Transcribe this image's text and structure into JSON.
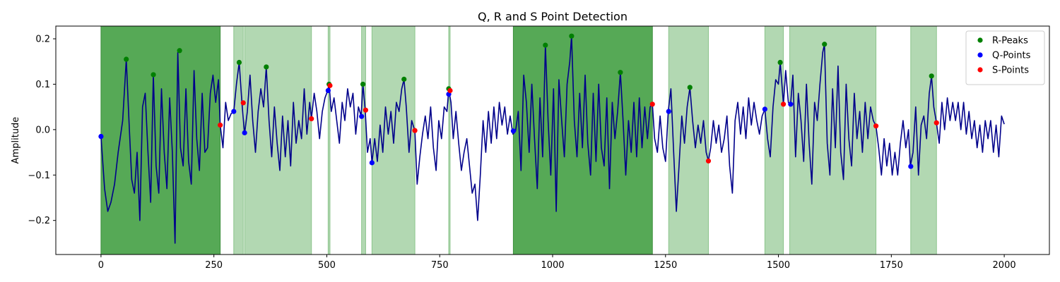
{
  "chart_data": {
    "type": "line",
    "title": "Q, R and S Point Detection",
    "xlabel": "",
    "ylabel": "Amplitude",
    "xlim": [
      -100,
      2100
    ],
    "ylim": [
      -0.275,
      0.228
    ],
    "xticks": [
      0,
      250,
      500,
      750,
      1000,
      1250,
      1500,
      1750,
      2000
    ],
    "yticks": [
      -0.2,
      -0.1,
      0.0,
      0.1,
      0.2
    ],
    "ytick_labels": [
      "−0.2",
      "−0.1",
      "0.0",
      "0.1",
      "0.2"
    ],
    "grid": false,
    "legend_position": "top-right",
    "colors": {
      "signal": "#00008b",
      "r_peaks": "#008000",
      "q_points": "#0000ff",
      "s_points": "#ff0000",
      "region_dark": "#56a956",
      "region_light": "#b2d8b2",
      "region_dark_edge": "#3d8f3d",
      "region_light_edge": "#8cc48c"
    },
    "shaded_regions": [
      {
        "x0": 0,
        "x1": 264,
        "shade": "dark"
      },
      {
        "x0": 294,
        "x1": 315,
        "shade": "light"
      },
      {
        "x0": 318,
        "x1": 466,
        "shade": "light"
      },
      {
        "x0": 503,
        "x1": 507,
        "shade": "light"
      },
      {
        "x0": 577,
        "x1": 586,
        "shade": "light"
      },
      {
        "x0": 600,
        "x1": 695,
        "shade": "light"
      },
      {
        "x0": 770,
        "x1": 773,
        "shade": "light"
      },
      {
        "x0": 913,
        "x1": 1221,
        "shade": "dark"
      },
      {
        "x0": 1257,
        "x1": 1345,
        "shade": "light"
      },
      {
        "x0": 1470,
        "x1": 1511,
        "shade": "light"
      },
      {
        "x0": 1525,
        "x1": 1716,
        "shade": "light"
      },
      {
        "x0": 1793,
        "x1": 1850,
        "shade": "light"
      }
    ],
    "signal_anchors": [
      [
        0,
        -0.015
      ],
      [
        8,
        -0.13
      ],
      [
        15,
        -0.18
      ],
      [
        22,
        -0.16
      ],
      [
        30,
        -0.12
      ],
      [
        38,
        -0.05
      ],
      [
        48,
        0.02
      ],
      [
        56,
        0.155
      ],
      [
        62,
        0.02
      ],
      [
        68,
        -0.11
      ],
      [
        74,
        -0.14
      ],
      [
        80,
        -0.05
      ],
      [
        86,
        -0.2
      ],
      [
        92,
        0.05
      ],
      [
        98,
        0.08
      ],
      [
        104,
        -0.05
      ],
      [
        110,
        -0.16
      ],
      [
        116,
        0.12
      ],
      [
        122,
        -0.08
      ],
      [
        128,
        -0.14
      ],
      [
        134,
        0.09
      ],
      [
        140,
        -0.05
      ],
      [
        146,
        -0.13
      ],
      [
        152,
        0.07
      ],
      [
        158,
        -0.05
      ],
      [
        164,
        -0.25
      ],
      [
        170,
        0.17
      ],
      [
        176,
        -0.04
      ],
      [
        182,
        -0.08
      ],
      [
        188,
        0.09
      ],
      [
        194,
        -0.07
      ],
      [
        200,
        -0.12
      ],
      [
        206,
        0.13
      ],
      [
        212,
        -0.02
      ],
      [
        218,
        -0.09
      ],
      [
        224,
        0.08
      ],
      [
        230,
        -0.05
      ],
      [
        236,
        -0.04
      ],
      [
        242,
        0.08
      ],
      [
        248,
        0.12
      ],
      [
        254,
        0.06
      ],
      [
        260,
        0.11
      ],
      [
        264,
        0.01
      ],
      [
        270,
        -0.04
      ],
      [
        276,
        0.06
      ],
      [
        282,
        0.02
      ],
      [
        288,
        0.035
      ],
      [
        294,
        0.04
      ],
      [
        300,
        0.1
      ],
      [
        306,
        0.148
      ],
      [
        312,
        0.06
      ],
      [
        318,
        -0.01
      ],
      [
        324,
        0.04
      ],
      [
        330,
        0.12
      ],
      [
        336,
        0.02
      ],
      [
        342,
        -0.05
      ],
      [
        348,
        0.04
      ],
      [
        354,
        0.09
      ],
      [
        360,
        0.05
      ],
      [
        366,
        0.138
      ],
      [
        372,
        0.02
      ],
      [
        378,
        -0.06
      ],
      [
        384,
        0.05
      ],
      [
        390,
        -0.03
      ],
      [
        396,
        -0.09
      ],
      [
        402,
        0.03
      ],
      [
        408,
        -0.06
      ],
      [
        414,
        0.02
      ],
      [
        420,
        -0.08
      ],
      [
        426,
        0.06
      ],
      [
        432,
        -0.03
      ],
      [
        438,
        0.02
      ],
      [
        444,
        -0.02
      ],
      [
        450,
        0.09
      ],
      [
        456,
        -0.01
      ],
      [
        462,
        0.06
      ],
      [
        466,
        0.025
      ],
      [
        472,
        0.08
      ],
      [
        478,
        0.04
      ],
      [
        484,
        -0.02
      ],
      [
        490,
        0.04
      ],
      [
        496,
        0.07
      ],
      [
        502,
        0.086
      ],
      [
        505,
        0.1
      ],
      [
        510,
        0.04
      ],
      [
        516,
        0.07
      ],
      [
        522,
        0.02
      ],
      [
        528,
        -0.03
      ],
      [
        534,
        0.06
      ],
      [
        540,
        0.02
      ],
      [
        546,
        0.09
      ],
      [
        552,
        0.05
      ],
      [
        558,
        0.08
      ],
      [
        564,
        -0.01
      ],
      [
        570,
        0.05
      ],
      [
        576,
        0.03
      ],
      [
        580,
        0.1
      ],
      [
        585,
        0.043
      ],
      [
        590,
        -0.05
      ],
      [
        596,
        -0.02
      ],
      [
        600,
        -0.073
      ],
      [
        606,
        -0.02
      ],
      [
        612,
        -0.07
      ],
      [
        618,
        0.01
      ],
      [
        624,
        -0.05
      ],
      [
        630,
        0.05
      ],
      [
        636,
        -0.01
      ],
      [
        642,
        0.04
      ],
      [
        648,
        -0.03
      ],
      [
        654,
        0.06
      ],
      [
        660,
        0.04
      ],
      [
        666,
        0.09
      ],
      [
        671,
        0.111
      ],
      [
        676,
        0.05
      ],
      [
        682,
        -0.05
      ],
      [
        688,
        0.02
      ],
      [
        695,
        -0.003
      ],
      [
        700,
        -0.12
      ],
      [
        706,
        -0.06
      ],
      [
        712,
        -0.01
      ],
      [
        718,
        0.03
      ],
      [
        724,
        -0.02
      ],
      [
        730,
        0.05
      ],
      [
        736,
        -0.04
      ],
      [
        742,
        -0.09
      ],
      [
        748,
        0.02
      ],
      [
        754,
        -0.02
      ],
      [
        760,
        0.05
      ],
      [
        766,
        0.04
      ],
      [
        770,
        0.088
      ],
      [
        775,
        0.06
      ],
      [
        780,
        -0.02
      ],
      [
        786,
        0.04
      ],
      [
        792,
        -0.03
      ],
      [
        798,
        -0.09
      ],
      [
        804,
        -0.05
      ],
      [
        810,
        -0.02
      ],
      [
        816,
        -0.08
      ],
      [
        822,
        -0.14
      ],
      [
        828,
        -0.12
      ],
      [
        834,
        -0.2
      ],
      [
        840,
        -0.1
      ],
      [
        846,
        0.02
      ],
      [
        852,
        -0.05
      ],
      [
        858,
        0.04
      ],
      [
        864,
        -0.03
      ],
      [
        870,
        0.05
      ],
      [
        876,
        -0.02
      ],
      [
        882,
        0.06
      ],
      [
        888,
        0.01
      ],
      [
        894,
        0.05
      ],
      [
        900,
        -0.01
      ],
      [
        906,
        0.03
      ],
      [
        912,
        -0.01
      ],
      [
        918,
        -0.003
      ],
      [
        924,
        0.04
      ],
      [
        930,
        -0.09
      ],
      [
        936,
        0.12
      ],
      [
        942,
        0.06
      ],
      [
        948,
        -0.05
      ],
      [
        954,
        0.1
      ],
      [
        960,
        -0.02
      ],
      [
        966,
        -0.13
      ],
      [
        972,
        0.07
      ],
      [
        978,
        -0.06
      ],
      [
        984,
        0.186
      ],
      [
        990,
        0.02
      ],
      [
        996,
        -0.1
      ],
      [
        1002,
        0.09
      ],
      [
        1008,
        -0.18
      ],
      [
        1014,
        0.11
      ],
      [
        1020,
        0.02
      ],
      [
        1026,
        -0.06
      ],
      [
        1032,
        0.1
      ],
      [
        1038,
        0.15
      ],
      [
        1042,
        0.206
      ],
      [
        1048,
        0.02
      ],
      [
        1054,
        -0.06
      ],
      [
        1060,
        0.08
      ],
      [
        1066,
        -0.04
      ],
      [
        1072,
        0.12
      ],
      [
        1078,
        -0.03
      ],
      [
        1084,
        -0.1
      ],
      [
        1090,
        0.08
      ],
      [
        1096,
        -0.07
      ],
      [
        1102,
        0.1
      ],
      [
        1108,
        -0.04
      ],
      [
        1114,
        -0.08
      ],
      [
        1120,
        0.07
      ],
      [
        1126,
        -0.13
      ],
      [
        1132,
        0.06
      ],
      [
        1138,
        -0.02
      ],
      [
        1144,
        0.04
      ],
      [
        1150,
        0.126
      ],
      [
        1156,
        0.02
      ],
      [
        1162,
        -0.1
      ],
      [
        1168,
        0.02
      ],
      [
        1174,
        -0.05
      ],
      [
        1180,
        0.06
      ],
      [
        1186,
        -0.06
      ],
      [
        1192,
        0.07
      ],
      [
        1198,
        -0.04
      ],
      [
        1204,
        0.05
      ],
      [
        1210,
        -0.02
      ],
      [
        1216,
        0.05
      ],
      [
        1221,
        0.056
      ],
      [
        1226,
        -0.02
      ],
      [
        1232,
        -0.05
      ],
      [
        1238,
        0.03
      ],
      [
        1244,
        -0.04
      ],
      [
        1250,
        -0.07
      ],
      [
        1256,
        0.04
      ],
      [
        1262,
        0.09
      ],
      [
        1268,
        -0.05
      ],
      [
        1274,
        -0.18
      ],
      [
        1280,
        -0.08
      ],
      [
        1286,
        0.03
      ],
      [
        1292,
        -0.03
      ],
      [
        1298,
        0.05
      ],
      [
        1304,
        0.093
      ],
      [
        1310,
        0.02
      ],
      [
        1316,
        -0.04
      ],
      [
        1322,
        0.01
      ],
      [
        1328,
        -0.03
      ],
      [
        1334,
        0.02
      ],
      [
        1340,
        -0.05
      ],
      [
        1345,
        -0.069
      ],
      [
        1350,
        -0.04
      ],
      [
        1356,
        0.02
      ],
      [
        1362,
        -0.03
      ],
      [
        1368,
        0.01
      ],
      [
        1374,
        -0.05
      ],
      [
        1380,
        -0.02
      ],
      [
        1386,
        0.03
      ],
      [
        1392,
        -0.08
      ],
      [
        1398,
        -0.14
      ],
      [
        1404,
        0.02
      ],
      [
        1410,
        0.06
      ],
      [
        1416,
        -0.01
      ],
      [
        1422,
        0.05
      ],
      [
        1428,
        -0.02
      ],
      [
        1434,
        0.07
      ],
      [
        1440,
        0.01
      ],
      [
        1446,
        0.06
      ],
      [
        1452,
        0.02
      ],
      [
        1458,
        -0.01
      ],
      [
        1464,
        0.03
      ],
      [
        1470,
        0.045
      ],
      [
        1476,
        -0.02
      ],
      [
        1482,
        -0.06
      ],
      [
        1488,
        0.05
      ],
      [
        1494,
        0.11
      ],
      [
        1500,
        0.1
      ],
      [
        1504,
        0.148
      ],
      [
        1511,
        0.056
      ],
      [
        1516,
        0.13
      ],
      [
        1522,
        0.06
      ],
      [
        1527,
        0.056
      ],
      [
        1532,
        0.12
      ],
      [
        1538,
        -0.06
      ],
      [
        1544,
        0.08
      ],
      [
        1550,
        0.02
      ],
      [
        1556,
        -0.07
      ],
      [
        1562,
        0.1
      ],
      [
        1568,
        -0.03
      ],
      [
        1574,
        -0.12
      ],
      [
        1580,
        0.06
      ],
      [
        1586,
        0.02
      ],
      [
        1592,
        0.1
      ],
      [
        1598,
        0.17
      ],
      [
        1602,
        0.188
      ],
      [
        1608,
        -0.03
      ],
      [
        1614,
        -0.1
      ],
      [
        1620,
        0.09
      ],
      [
        1626,
        -0.04
      ],
      [
        1632,
        0.14
      ],
      [
        1638,
        -0.05
      ],
      [
        1644,
        -0.11
      ],
      [
        1650,
        0.1
      ],
      [
        1656,
        -0.02
      ],
      [
        1662,
        -0.08
      ],
      [
        1668,
        0.08
      ],
      [
        1674,
        -0.02
      ],
      [
        1680,
        0.04
      ],
      [
        1686,
        -0.05
      ],
      [
        1692,
        0.06
      ],
      [
        1698,
        -0.02
      ],
      [
        1704,
        0.05
      ],
      [
        1710,
        0.02
      ],
      [
        1716,
        0.008
      ],
      [
        1722,
        -0.04
      ],
      [
        1728,
        -0.1
      ],
      [
        1734,
        -0.02
      ],
      [
        1740,
        -0.08
      ],
      [
        1746,
        -0.03
      ],
      [
        1752,
        -0.1
      ],
      [
        1758,
        -0.05
      ],
      [
        1764,
        -0.1
      ],
      [
        1770,
        -0.03
      ],
      [
        1776,
        0.02
      ],
      [
        1782,
        -0.04
      ],
      [
        1788,
        0.0
      ],
      [
        1792,
        -0.081
      ],
      [
        1798,
        -0.05
      ],
      [
        1804,
        0.05
      ],
      [
        1810,
        -0.1
      ],
      [
        1816,
        0.01
      ],
      [
        1822,
        0.03
      ],
      [
        1828,
        -0.02
      ],
      [
        1834,
        0.08
      ],
      [
        1839,
        0.118
      ],
      [
        1844,
        0.05
      ],
      [
        1850,
        0.015
      ],
      [
        1856,
        -0.03
      ],
      [
        1862,
        0.06
      ],
      [
        1868,
        0.0
      ],
      [
        1874,
        0.07
      ],
      [
        1880,
        0.02
      ],
      [
        1886,
        0.06
      ],
      [
        1892,
        0.02
      ],
      [
        1898,
        0.06
      ],
      [
        1904,
        0.0
      ],
      [
        1910,
        0.06
      ],
      [
        1916,
        -0.01
      ],
      [
        1922,
        0.04
      ],
      [
        1928,
        -0.02
      ],
      [
        1934,
        0.02
      ],
      [
        1940,
        -0.04
      ],
      [
        1946,
        0.01
      ],
      [
        1952,
        -0.05
      ],
      [
        1958,
        0.02
      ],
      [
        1964,
        -0.02
      ],
      [
        1970,
        0.02
      ],
      [
        1976,
        -0.05
      ],
      [
        1982,
        0.01
      ],
      [
        1988,
        -0.06
      ],
      [
        1994,
        0.03
      ],
      [
        2000,
        0.012
      ]
    ],
    "series": [
      {
        "name": "R-Peaks",
        "marker": "r",
        "points": [
          [
            56,
            0.155
          ],
          [
            116,
            0.121
          ],
          [
            174,
            0.174
          ],
          [
            306,
            0.148
          ],
          [
            366,
            0.138
          ],
          [
            505,
            0.1
          ],
          [
            580,
            0.1
          ],
          [
            671,
            0.111
          ],
          [
            770,
            0.09
          ],
          [
            984,
            0.186
          ],
          [
            1042,
            0.206
          ],
          [
            1150,
            0.126
          ],
          [
            1304,
            0.093
          ],
          [
            1504,
            0.148
          ],
          [
            1602,
            0.188
          ],
          [
            1839,
            0.118
          ]
        ]
      },
      {
        "name": "Q-Points",
        "marker": "q",
        "points": [
          [
            0,
            -0.015
          ],
          [
            294,
            0.04
          ],
          [
            318,
            -0.007
          ],
          [
            503,
            0.086
          ],
          [
            577,
            0.029
          ],
          [
            600,
            -0.073
          ],
          [
            770,
            0.078
          ],
          [
            913,
            -0.003
          ],
          [
            1257,
            0.04
          ],
          [
            1470,
            0.045
          ],
          [
            1527,
            0.056
          ],
          [
            1793,
            -0.081
          ]
        ]
      },
      {
        "name": "S-Points",
        "marker": "s",
        "points": [
          [
            264,
            0.01
          ],
          [
            315,
            0.059
          ],
          [
            466,
            0.024
          ],
          [
            507,
            0.097
          ],
          [
            586,
            0.043
          ],
          [
            695,
            -0.002
          ],
          [
            773,
            0.086
          ],
          [
            1221,
            0.056
          ],
          [
            1345,
            -0.069
          ],
          [
            1511,
            0.056
          ],
          [
            1716,
            0.008
          ],
          [
            1850,
            0.015
          ]
        ]
      }
    ]
  }
}
